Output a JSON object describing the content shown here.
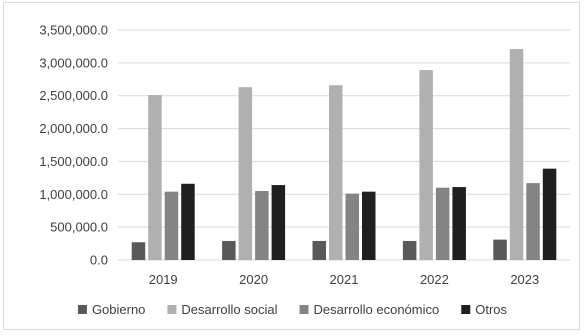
{
  "chart_data": {
    "type": "bar",
    "title": "",
    "xlabel": "",
    "ylabel": "",
    "categories": [
      "2019",
      "2020",
      "2021",
      "2022",
      "2023"
    ],
    "ylim": [
      0,
      3500000
    ],
    "yticks": [
      0,
      500000,
      1000000,
      1500000,
      2000000,
      2500000,
      3000000,
      3500000
    ],
    "ytick_labels": [
      "0.0",
      "500,000.0",
      "1,000,000.0",
      "1,500,000.0",
      "2,000,000.0",
      "2,500,000.0",
      "3,000,000.0",
      "3,500,000.0"
    ],
    "grid": true,
    "legend_position": "bottom",
    "series": [
      {
        "name": "Gobierno",
        "color": "#595959",
        "values": [
          270000,
          290000,
          290000,
          290000,
          310000
        ]
      },
      {
        "name": "Desarrollo social",
        "color": "#b0b0b0",
        "values": [
          2510000,
          2630000,
          2660000,
          2890000,
          3210000
        ]
      },
      {
        "name": "Desarrollo económico",
        "color": "#848484",
        "values": [
          1040000,
          1050000,
          1010000,
          1100000,
          1170000
        ]
      },
      {
        "name": "Otros",
        "color": "#1f1f1f",
        "values": [
          1160000,
          1140000,
          1040000,
          1110000,
          1390000
        ]
      }
    ]
  }
}
